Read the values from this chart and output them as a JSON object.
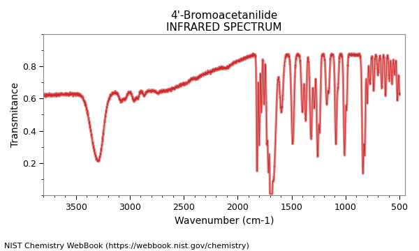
{
  "title_line1": "4'-Bromoacetanilide",
  "title_line2": "INFRARED SPECTRUM",
  "xlabel": "Wavenumber (cm-1)",
  "ylabel": "Transmitance",
  "nist_credit": "NIST Chemistry WebBook (https://webbook.nist.gov/chemistry)",
  "xlim": [
    3800,
    450
  ],
  "ylim": [
    0,
    1.0
  ],
  "line_color_thick": "#e08080",
  "line_color_thin": "#cc2222",
  "background_color": "#ffffff",
  "plot_bg": "#ffffff",
  "title_fontsize": 11,
  "label_fontsize": 10,
  "credit_fontsize": 8,
  "xticks": [
    3500,
    3000,
    2500,
    2000,
    1500,
    1000,
    500
  ],
  "yticks": [
    0.2,
    0.4,
    0.6,
    0.8
  ]
}
